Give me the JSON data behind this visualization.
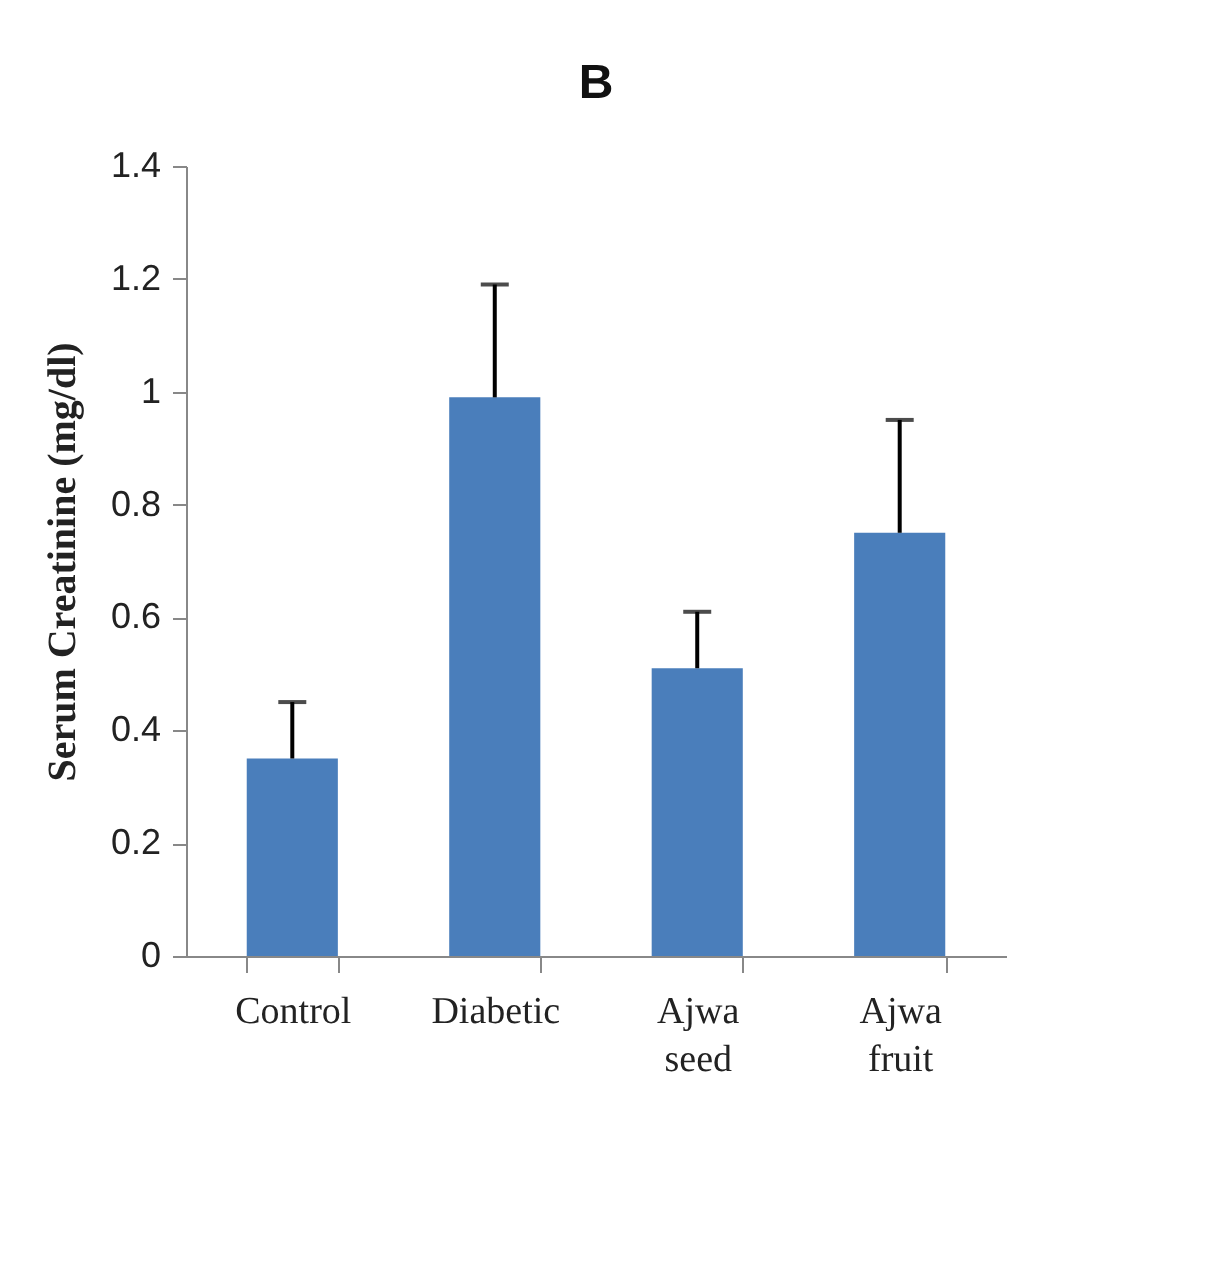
{
  "chart_data": {
    "type": "bar",
    "title": "B",
    "ylabel": "Serum Creatinine (mg/dl)",
    "categories": [
      "Control",
      "Diabetic",
      "Ajwa seed",
      "Ajwa fruit"
    ],
    "values": [
      0.35,
      0.99,
      0.51,
      0.75
    ],
    "errors": [
      [
        0.35,
        0.45
      ],
      [
        0.99,
        1.19
      ],
      [
        0.51,
        0.61
      ],
      [
        0.75,
        0.95
      ]
    ],
    "color": "#4a7ebb",
    "ylim": [
      0,
      1.4
    ],
    "yticks": [
      {
        "value": 0,
        "label": "0"
      },
      0.2,
      0.4,
      0.6,
      0.8,
      {
        "value": 1,
        "label": "1"
      },
      1.2,
      1.4
    ],
    "grid": false
  }
}
